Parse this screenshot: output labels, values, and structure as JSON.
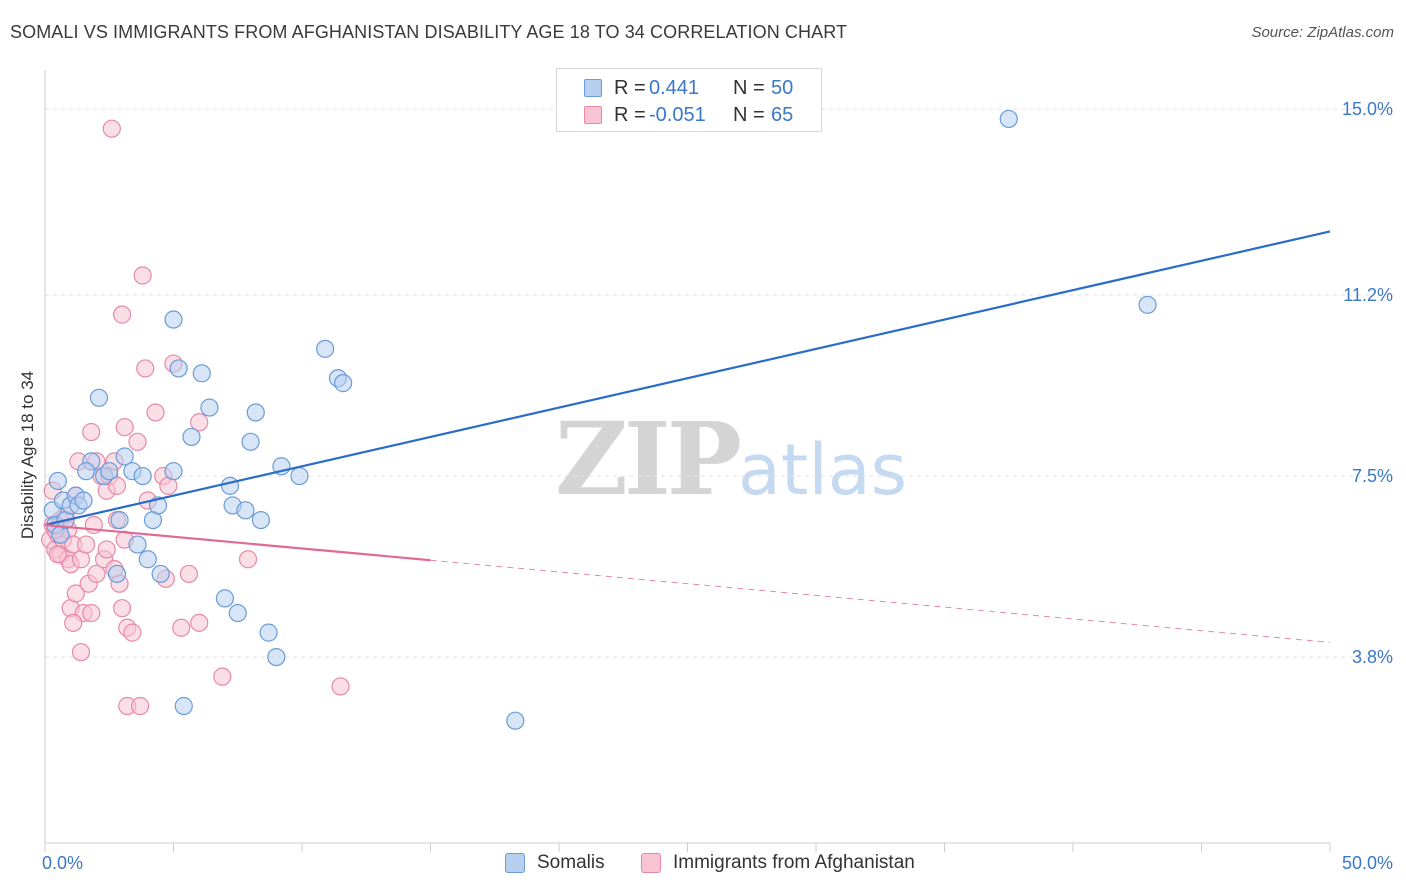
{
  "title": "SOMALI VS IMMIGRANTS FROM AFGHANISTAN DISABILITY AGE 18 TO 34 CORRELATION CHART",
  "source": "Source: ZipAtlas.com",
  "watermark": {
    "zip": "ZIP",
    "atlas": "atlas"
  },
  "legend_top": {
    "rows": [
      {
        "r_label": "R =",
        "r_value": "0.441",
        "n_label": "N =",
        "n_value": "50"
      },
      {
        "r_label": "R =",
        "r_value": "-0.051",
        "n_label": "N =",
        "n_value": "65"
      }
    ]
  },
  "legend_bottom": {
    "items": [
      "Somalis",
      "Immigrants from Afghanistan"
    ]
  },
  "colors": {
    "somali_fill": "#b8d0f0",
    "somali_stroke": "#6a9bd8",
    "somali_line": "#2a6cc9",
    "afghan_fill": "#f8c4d4",
    "afghan_stroke": "#e889a6",
    "afghan_line": "#e06a93",
    "tick_label": "#3a78c9",
    "grid": "#e2e2e2"
  },
  "chart_data": {
    "type": "scatter",
    "title": "SOMALI VS IMMIGRANTS FROM AFGHANISTAN DISABILITY AGE 18 TO 34 CORRELATION CHART",
    "xlabel": "",
    "ylabel": "Disability Age 18 to 34",
    "xlim": [
      0,
      50
    ],
    "ylim": [
      0,
      15.8
    ],
    "x_tick_labels": [
      {
        "value": 0,
        "label": "0.0%"
      },
      {
        "value": 50,
        "label": "50.0%"
      }
    ],
    "y_ticks": [
      {
        "value": 3.8,
        "label": "3.8%"
      },
      {
        "value": 7.5,
        "label": "7.5%"
      },
      {
        "value": 11.2,
        "label": "11.2%"
      },
      {
        "value": 15.0,
        "label": "15.0%"
      }
    ],
    "grid": true,
    "legend_position": "bottom",
    "series": [
      {
        "name": "Somalis",
        "r": 0.441,
        "n": 50,
        "trend": {
          "x": [
            0,
            50
          ],
          "y": [
            6.5,
            12.5
          ],
          "solid_to": 50
        },
        "points": [
          [
            0.3,
            6.8
          ],
          [
            0.4,
            6.5
          ],
          [
            0.5,
            7.4
          ],
          [
            0.6,
            6.3
          ],
          [
            0.7,
            7.0
          ],
          [
            0.8,
            6.6
          ],
          [
            1.0,
            6.9
          ],
          [
            1.2,
            7.1
          ],
          [
            1.3,
            6.9
          ],
          [
            1.5,
            7.0
          ],
          [
            1.8,
            7.8
          ],
          [
            1.6,
            7.6
          ],
          [
            2.1,
            9.1
          ],
          [
            2.3,
            7.5
          ],
          [
            2.5,
            7.6
          ],
          [
            2.9,
            6.6
          ],
          [
            3.1,
            7.9
          ],
          [
            3.4,
            7.6
          ],
          [
            3.6,
            6.1
          ],
          [
            3.8,
            7.5
          ],
          [
            4.0,
            5.8
          ],
          [
            4.2,
            6.6
          ],
          [
            4.4,
            6.9
          ],
          [
            4.5,
            5.5
          ],
          [
            5.0,
            7.6
          ],
          [
            5.0,
            10.7
          ],
          [
            5.2,
            9.7
          ],
          [
            5.7,
            8.3
          ],
          [
            6.1,
            9.6
          ],
          [
            6.4,
            8.9
          ],
          [
            7.0,
            5.0
          ],
          [
            7.2,
            7.3
          ],
          [
            7.3,
            6.9
          ],
          [
            7.5,
            4.7
          ],
          [
            7.8,
            6.8
          ],
          [
            8.0,
            8.2
          ],
          [
            8.2,
            8.8
          ],
          [
            8.4,
            6.6
          ],
          [
            8.7,
            4.3
          ],
          [
            9.0,
            3.8
          ],
          [
            9.2,
            7.7
          ],
          [
            9.9,
            7.5
          ],
          [
            10.9,
            10.1
          ],
          [
            11.4,
            9.5
          ],
          [
            11.6,
            9.4
          ],
          [
            18.3,
            2.5
          ],
          [
            37.5,
            14.8
          ],
          [
            42.9,
            11.0
          ],
          [
            5.4,
            2.8
          ],
          [
            2.8,
            5.5
          ]
        ]
      },
      {
        "name": "Immigrants from Afghanistan",
        "r": -0.051,
        "n": 65,
        "trend": {
          "x": [
            0,
            50
          ],
          "y": [
            6.5,
            4.1
          ],
          "solid_to": 15
        },
        "points": [
          [
            0.2,
            6.2
          ],
          [
            0.3,
            6.5
          ],
          [
            0.3,
            7.2
          ],
          [
            0.4,
            6.0
          ],
          [
            0.5,
            6.3
          ],
          [
            0.6,
            6.6
          ],
          [
            0.6,
            5.9
          ],
          [
            0.7,
            6.2
          ],
          [
            0.8,
            6.7
          ],
          [
            0.9,
            6.4
          ],
          [
            0.9,
            5.8
          ],
          [
            1.0,
            5.7
          ],
          [
            1.0,
            4.8
          ],
          [
            1.1,
            6.1
          ],
          [
            1.2,
            7.1
          ],
          [
            1.2,
            5.1
          ],
          [
            1.3,
            7.8
          ],
          [
            1.4,
            5.8
          ],
          [
            1.4,
            3.9
          ],
          [
            1.5,
            4.7
          ],
          [
            1.6,
            6.1
          ],
          [
            1.7,
            5.3
          ],
          [
            1.8,
            4.7
          ],
          [
            1.8,
            8.4
          ],
          [
            1.9,
            6.5
          ],
          [
            2.0,
            5.5
          ],
          [
            2.2,
            7.5
          ],
          [
            2.3,
            5.8
          ],
          [
            2.4,
            7.2
          ],
          [
            2.5,
            7.5
          ],
          [
            2.6,
            14.6
          ],
          [
            2.7,
            7.8
          ],
          [
            2.7,
            5.6
          ],
          [
            2.8,
            7.3
          ],
          [
            2.8,
            6.6
          ],
          [
            2.9,
            5.3
          ],
          [
            3.0,
            4.8
          ],
          [
            3.0,
            10.8
          ],
          [
            3.1,
            6.2
          ],
          [
            3.2,
            4.4
          ],
          [
            3.2,
            2.8
          ],
          [
            3.4,
            4.3
          ],
          [
            3.6,
            8.2
          ],
          [
            3.7,
            2.8
          ],
          [
            3.8,
            11.6
          ],
          [
            3.9,
            9.7
          ],
          [
            4.0,
            7.0
          ],
          [
            4.3,
            8.8
          ],
          [
            4.6,
            7.5
          ],
          [
            4.7,
            5.4
          ],
          [
            4.8,
            7.3
          ],
          [
            5.0,
            9.8
          ],
          [
            5.3,
            4.4
          ],
          [
            5.6,
            5.5
          ],
          [
            6.0,
            8.6
          ],
          [
            6.0,
            4.5
          ],
          [
            6.9,
            3.4
          ],
          [
            7.9,
            5.8
          ],
          [
            11.5,
            3.2
          ],
          [
            0.4,
            6.4
          ],
          [
            0.5,
            5.9
          ],
          [
            1.1,
            4.5
          ],
          [
            2.0,
            7.8
          ],
          [
            3.1,
            8.5
          ],
          [
            2.4,
            6.0
          ]
        ]
      }
    ]
  }
}
